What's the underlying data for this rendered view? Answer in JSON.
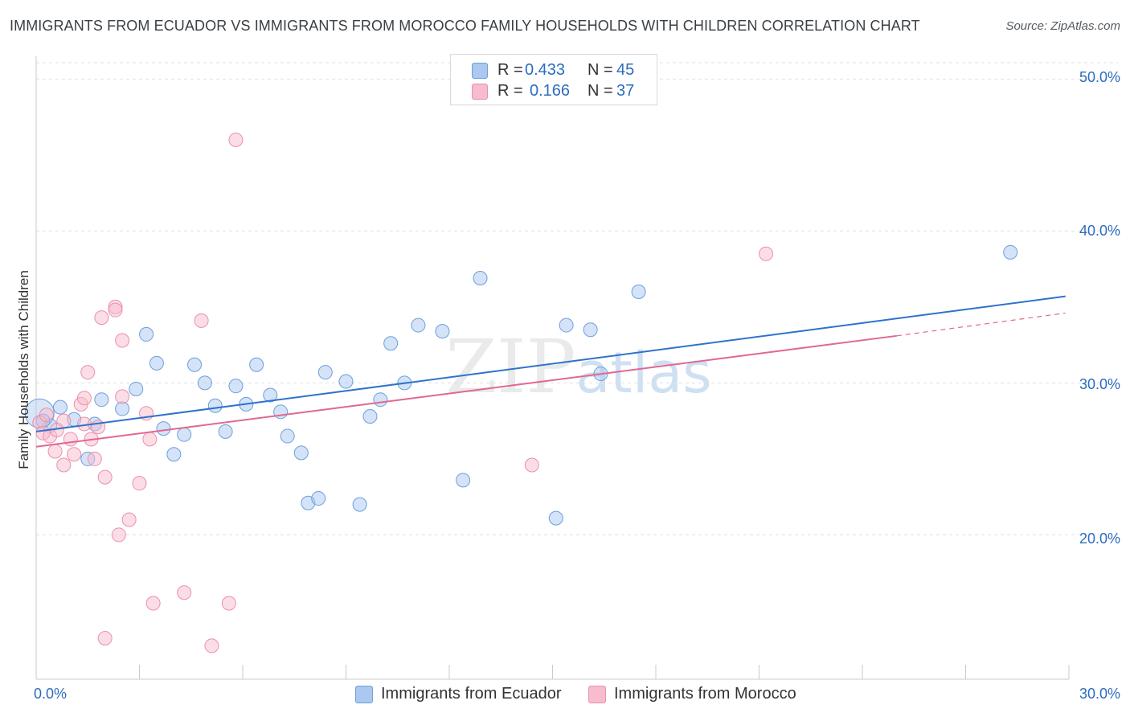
{
  "title": "IMMIGRANTS FROM ECUADOR VS IMMIGRANTS FROM MOROCCO FAMILY HOUSEHOLDS WITH CHILDREN CORRELATION CHART",
  "source": "Source: ZipAtlas.com",
  "watermark": "ZIPatlas",
  "colors": {
    "ecuador_fill": "#aac8f0",
    "ecuador_stroke": "#6d9fdc",
    "ecuador_line": "#2f72cc",
    "morocco_fill": "#f7bccd",
    "morocco_stroke": "#ec8fac",
    "morocco_line": "#e06890",
    "tick_text": "#2d6cc0",
    "grid": "#dde0e4"
  },
  "legend_top": {
    "rows": [
      {
        "r_label": "R =",
        "r_value": "0.433",
        "n_label": "N =",
        "n_value": "45",
        "color": "#aac8f0",
        "border": "#6d9fdc"
      },
      {
        "r_label": "R =",
        "r_value": "0.166",
        "n_label": "N =",
        "n_value": "37",
        "color": "#f7bccd",
        "border": "#ec8fac"
      }
    ]
  },
  "legend_bottom": {
    "items": [
      {
        "label": "Immigrants from Ecuador",
        "color": "#aac8f0",
        "border": "#6d9fdc"
      },
      {
        "label": "Immigrants from Morocco",
        "color": "#f7bccd",
        "border": "#ec8fac"
      }
    ]
  },
  "y_axis_label": "Family Households with Children",
  "x_ticks": [
    "0.0%",
    "30.0%"
  ],
  "y_ticks": [
    "50.0%",
    "40.0%",
    "30.0%",
    "20.0%"
  ],
  "chart_data": {
    "type": "scatter",
    "title": "IMMIGRANTS FROM ECUADOR VS IMMIGRANTS FROM MOROCCO FAMILY HOUSEHOLDS WITH CHILDREN CORRELATION CHART",
    "xlabel": "",
    "ylabel": "Family Households with Children",
    "xlim": [
      0,
      30
    ],
    "ylim": [
      10.5,
      51.5
    ],
    "x_tick_values": [
      0,
      30
    ],
    "y_tick_values": [
      20,
      30,
      40,
      50
    ],
    "grid": "horizontal dashed",
    "legend_placement": "top-center and bottom",
    "series": [
      {
        "name": "Immigrants from Ecuador",
        "r": 0.433,
        "n": 45,
        "trend": {
          "x": [
            0,
            29.9
          ],
          "y": [
            26.8,
            35.7
          ]
        },
        "points": [
          {
            "x": 0.1,
            "y": 28.0,
            "big": true
          },
          {
            "x": 0.4,
            "y": 27.2
          },
          {
            "x": 0.7,
            "y": 28.4
          },
          {
            "x": 1.1,
            "y": 27.6
          },
          {
            "x": 1.5,
            "y": 25.0
          },
          {
            "x": 1.7,
            "y": 27.3
          },
          {
            "x": 1.9,
            "y": 28.9
          },
          {
            "x": 2.5,
            "y": 28.3
          },
          {
            "x": 2.9,
            "y": 29.6
          },
          {
            "x": 3.2,
            "y": 33.2
          },
          {
            "x": 3.5,
            "y": 31.3
          },
          {
            "x": 3.7,
            "y": 27.0
          },
          {
            "x": 4.0,
            "y": 25.3
          },
          {
            "x": 4.3,
            "y": 26.6
          },
          {
            "x": 4.6,
            "y": 31.2
          },
          {
            "x": 4.9,
            "y": 30.0
          },
          {
            "x": 5.2,
            "y": 28.5
          },
          {
            "x": 5.5,
            "y": 26.8
          },
          {
            "x": 5.8,
            "y": 29.8
          },
          {
            "x": 6.1,
            "y": 28.6
          },
          {
            "x": 6.4,
            "y": 31.2
          },
          {
            "x": 6.8,
            "y": 29.2
          },
          {
            "x": 7.1,
            "y": 28.1
          },
          {
            "x": 7.3,
            "y": 26.5
          },
          {
            "x": 7.7,
            "y": 25.4
          },
          {
            "x": 7.9,
            "y": 22.1
          },
          {
            "x": 8.2,
            "y": 22.4
          },
          {
            "x": 8.4,
            "y": 30.7
          },
          {
            "x": 9.0,
            "y": 30.1
          },
          {
            "x": 9.4,
            "y": 22.0
          },
          {
            "x": 9.7,
            "y": 27.8
          },
          {
            "x": 10.0,
            "y": 28.9
          },
          {
            "x": 10.3,
            "y": 32.6
          },
          {
            "x": 10.7,
            "y": 30.0
          },
          {
            "x": 11.1,
            "y": 33.8
          },
          {
            "x": 11.8,
            "y": 33.4
          },
          {
            "x": 12.4,
            "y": 23.6
          },
          {
            "x": 12.9,
            "y": 36.9
          },
          {
            "x": 15.1,
            "y": 21.1
          },
          {
            "x": 15.4,
            "y": 33.8
          },
          {
            "x": 16.1,
            "y": 33.5
          },
          {
            "x": 16.4,
            "y": 30.6
          },
          {
            "x": 17.5,
            "y": 36.0
          },
          {
            "x": 28.3,
            "y": 38.6
          },
          {
            "x": 0.2,
            "y": 27.5
          }
        ]
      },
      {
        "name": "Immigrants from Morocco",
        "r": 0.166,
        "n": 37,
        "trend": {
          "x": [
            0,
            25.0
          ],
          "y": [
            25.8,
            33.1
          ]
        },
        "trend_dashed": {
          "x": [
            25.0,
            29.9
          ],
          "y": [
            33.1,
            34.6
          ]
        },
        "points": [
          {
            "x": 0.1,
            "y": 27.4
          },
          {
            "x": 0.2,
            "y": 26.7
          },
          {
            "x": 0.3,
            "y": 27.9
          },
          {
            "x": 0.4,
            "y": 26.5
          },
          {
            "x": 0.55,
            "y": 25.5
          },
          {
            "x": 0.8,
            "y": 27.5
          },
          {
            "x": 0.8,
            "y": 24.6
          },
          {
            "x": 1.0,
            "y": 26.3
          },
          {
            "x": 1.1,
            "y": 25.3
          },
          {
            "x": 1.3,
            "y": 28.6
          },
          {
            "x": 1.4,
            "y": 29.0
          },
          {
            "x": 1.5,
            "y": 30.7
          },
          {
            "x": 1.6,
            "y": 26.3
          },
          {
            "x": 1.7,
            "y": 25.0
          },
          {
            "x": 1.8,
            "y": 27.1
          },
          {
            "x": 1.9,
            "y": 34.3
          },
          {
            "x": 2.0,
            "y": 13.2
          },
          {
            "x": 2.0,
            "y": 23.8
          },
          {
            "x": 2.3,
            "y": 35.0
          },
          {
            "x": 2.4,
            "y": 20.0
          },
          {
            "x": 2.3,
            "y": 34.8
          },
          {
            "x": 2.5,
            "y": 29.1
          },
          {
            "x": 2.5,
            "y": 32.8
          },
          {
            "x": 2.7,
            "y": 21.0
          },
          {
            "x": 3.0,
            "y": 23.4
          },
          {
            "x": 3.2,
            "y": 28.0
          },
          {
            "x": 3.3,
            "y": 26.3
          },
          {
            "x": 3.4,
            "y": 15.5
          },
          {
            "x": 4.3,
            "y": 16.2
          },
          {
            "x": 4.8,
            "y": 34.1
          },
          {
            "x": 5.1,
            "y": 12.7
          },
          {
            "x": 5.6,
            "y": 15.5
          },
          {
            "x": 5.8,
            "y": 46.0
          },
          {
            "x": 14.4,
            "y": 24.6
          },
          {
            "x": 21.2,
            "y": 38.5
          },
          {
            "x": 1.4,
            "y": 27.3
          },
          {
            "x": 0.6,
            "y": 26.9
          }
        ]
      }
    ]
  }
}
